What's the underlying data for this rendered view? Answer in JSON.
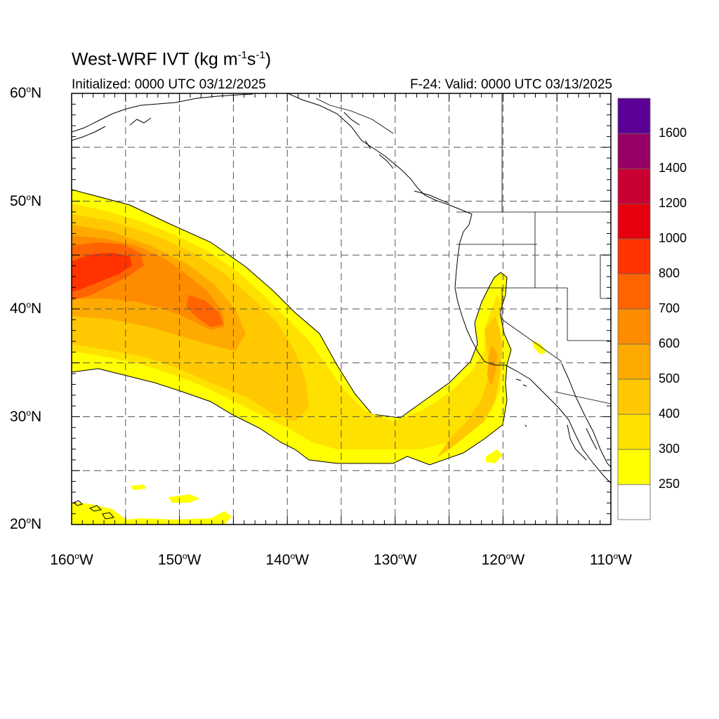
{
  "title": {
    "main": "West-WRF IVT (kg m",
    "sup1": "-1",
    "mid": "s",
    "sup2": "-1",
    "end": ")"
  },
  "subtitle_left": "Initialized: 0000 UTC 03/12/2025",
  "subtitle_right": "F-24: Valid: 0000 UTC 03/13/2025",
  "map": {
    "extent": {
      "lon": [
        -160,
        -110
      ],
      "lat": [
        20,
        60
      ]
    },
    "lat_labels": [
      {
        "value": 60,
        "text": "60",
        "hemi": "N"
      },
      {
        "value": 50,
        "text": "50",
        "hemi": "N"
      },
      {
        "value": 40,
        "text": "40",
        "hemi": "N"
      },
      {
        "value": 30,
        "text": "30",
        "hemi": "N"
      },
      {
        "value": 20,
        "text": "20",
        "hemi": "N"
      }
    ],
    "lon_labels": [
      {
        "value": -160,
        "text": "160",
        "hemi": "W"
      },
      {
        "value": -150,
        "text": "150",
        "hemi": "W"
      },
      {
        "value": -140,
        "text": "140",
        "hemi": "W"
      },
      {
        "value": -130,
        "text": "130",
        "hemi": "W"
      },
      {
        "value": -120,
        "text": "120",
        "hemi": "W"
      },
      {
        "value": -110,
        "text": "110",
        "hemi": "W"
      }
    ],
    "gridlines": true,
    "field": "IVT"
  },
  "colorbar": {
    "levels": [
      "250",
      "300",
      "400",
      "500",
      "600",
      "700",
      "800",
      "1000",
      "1200",
      "1400",
      "1600"
    ],
    "colors": [
      "#ffffff",
      "#ffff00",
      "#ffe100",
      "#ffc800",
      "#ffaa00",
      "#ff8c00",
      "#ff6400",
      "#ff3200",
      "#e6000f",
      "#c80032",
      "#960064",
      "#5a0096"
    ]
  }
}
